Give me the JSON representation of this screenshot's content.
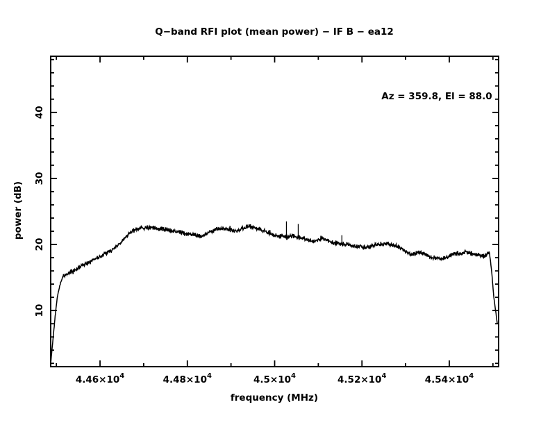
{
  "window": {
    "background": "#ffffff",
    "foreground": "#000000"
  },
  "chart_data": {
    "type": "line",
    "title": "Q−band RFI plot (mean power) − IF B − ea12",
    "annotation": "Az = 359.8, El = 88.0",
    "xlabel": "frequency (MHz)",
    "ylabel": "power (dB)",
    "xlim": [
      44487,
      45513
    ],
    "ylim": [
      1.5,
      48.5
    ],
    "grid": false,
    "legend": "none",
    "line_color": "#000000",
    "noise_db": 0.42,
    "x_major_ticks": [
      {
        "value": 44600,
        "mantissa": "4.46×10",
        "exponent": "4"
      },
      {
        "value": 44800,
        "mantissa": "4.48×10",
        "exponent": "4"
      },
      {
        "value": 45000,
        "mantissa": "4.5×10",
        "exponent": "4"
      },
      {
        "value": 45200,
        "mantissa": "4.52×10",
        "exponent": "4"
      },
      {
        "value": 45400,
        "mantissa": "4.54×10",
        "exponent": "4"
      }
    ],
    "x_minor_ticks": [
      44500,
      44700,
      44900,
      45100,
      45300,
      45500
    ],
    "y_major_ticks": [
      {
        "value": 10,
        "label": "10"
      },
      {
        "value": 20,
        "label": "20"
      },
      {
        "value": 30,
        "label": "30"
      },
      {
        "value": 40,
        "label": "40"
      }
    ],
    "y_minor_ticks": [
      2,
      4,
      6,
      8,
      12,
      14,
      16,
      18,
      22,
      24,
      26,
      28,
      32,
      34,
      36,
      38,
      42,
      44,
      46,
      48
    ],
    "anchors": [
      [
        44487,
        2.0
      ],
      [
        44492,
        5.5
      ],
      [
        44497,
        9.0
      ],
      [
        44502,
        12.0
      ],
      [
        44508,
        13.8
      ],
      [
        44515,
        15.2
      ],
      [
        44535,
        15.9
      ],
      [
        44560,
        16.8
      ],
      [
        44585,
        17.7
      ],
      [
        44610,
        18.5
      ],
      [
        44635,
        19.5
      ],
      [
        44655,
        20.8
      ],
      [
        44670,
        21.9
      ],
      [
        44690,
        22.4
      ],
      [
        44710,
        22.6
      ],
      [
        44730,
        22.4
      ],
      [
        44755,
        22.2
      ],
      [
        44780,
        21.9
      ],
      [
        44805,
        21.6
      ],
      [
        44830,
        21.2
      ],
      [
        44855,
        22.0
      ],
      [
        44875,
        22.5
      ],
      [
        44895,
        22.2
      ],
      [
        44915,
        22.1
      ],
      [
        44940,
        22.8
      ],
      [
        44955,
        22.5
      ],
      [
        44975,
        22.1
      ],
      [
        44995,
        21.4
      ],
      [
        45020,
        21.2
      ],
      [
        45045,
        21.3
      ],
      [
        45070,
        20.8
      ],
      [
        45090,
        20.5
      ],
      [
        45110,
        20.9
      ],
      [
        45135,
        20.2
      ],
      [
        45160,
        20.0
      ],
      [
        45185,
        19.7
      ],
      [
        45210,
        19.6
      ],
      [
        45235,
        20.0
      ],
      [
        45260,
        20.1
      ],
      [
        45285,
        19.6
      ],
      [
        45310,
        18.5
      ],
      [
        45335,
        18.8
      ],
      [
        45360,
        18.0
      ],
      [
        45385,
        17.8
      ],
      [
        45410,
        18.6
      ],
      [
        45440,
        18.8
      ],
      [
        45465,
        18.4
      ],
      [
        45480,
        18.2
      ],
      [
        45492,
        18.8
      ],
      [
        45497,
        16.0
      ],
      [
        45502,
        12.0
      ],
      [
        45507,
        9.5
      ],
      [
        45510,
        8.0
      ]
    ],
    "spikes": [
      [
        45027,
        23.5
      ],
      [
        45054,
        23.1
      ],
      [
        45154,
        21.4
      ]
    ]
  }
}
